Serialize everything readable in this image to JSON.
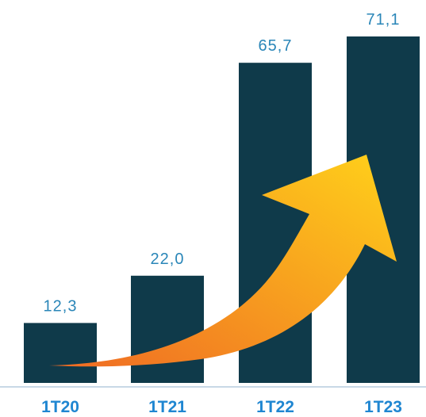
{
  "colors": {
    "bar": "#0f3a4a",
    "value_label": "#2a86b8",
    "category_label": "#1f86d1",
    "axis_line": "#c8d8e6",
    "arrow_start": "#ef6a24",
    "arrow_end": "#ffd11a"
  },
  "decorations": {
    "trend_arrow_icon": "rising-arrow-icon"
  },
  "chart_data": {
    "type": "bar",
    "categories": [
      "1T20",
      "1T21",
      "1T22",
      "1T23"
    ],
    "values": [
      12.3,
      22.0,
      65.7,
      71.1
    ],
    "value_labels": [
      "12,3",
      "22,0",
      "65,7",
      "71,1"
    ],
    "title": "",
    "xlabel": "",
    "ylabel": "",
    "ylim": [
      0,
      71.1
    ],
    "grid": false,
    "legend": "none"
  }
}
